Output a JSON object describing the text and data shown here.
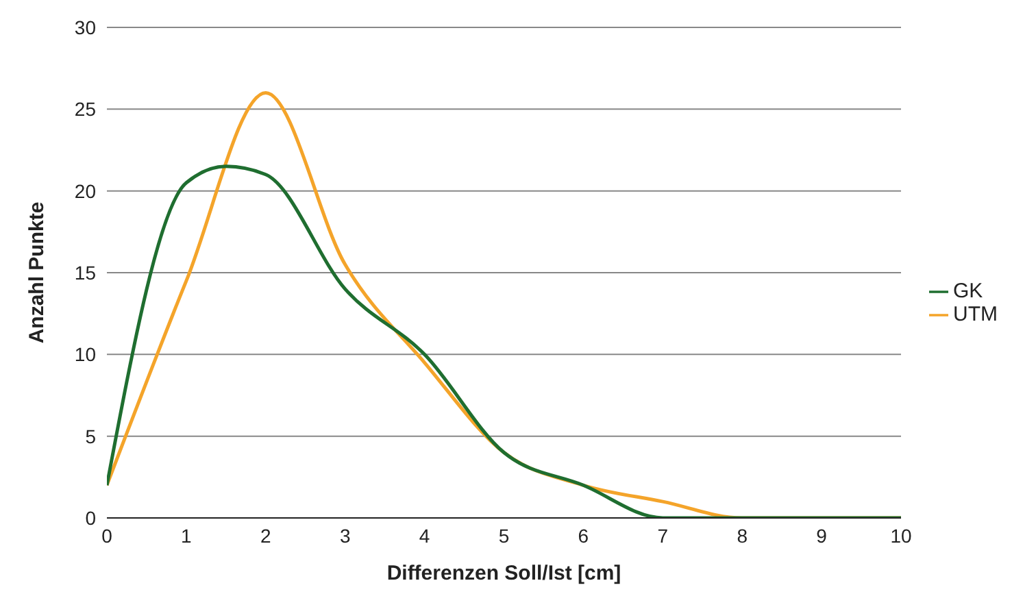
{
  "chart_data": {
    "type": "line",
    "xlabel": "Differenzen Soll/Ist [cm]",
    "ylabel": "Anzahl Punkte",
    "series": [
      {
        "name": "UTM",
        "color": "#f4a42a",
        "x": [
          0,
          1,
          2,
          3,
          4,
          5,
          6,
          7,
          8,
          9,
          10
        ],
        "values": [
          2,
          14.5,
          26,
          15.5,
          9.5,
          4,
          2,
          1,
          0,
          0,
          0
        ]
      },
      {
        "name": "GK",
        "color": "#1f6e30",
        "x": [
          0,
          1,
          1.5,
          2,
          3,
          4,
          5,
          6,
          7,
          8,
          9,
          10
        ],
        "values": [
          2,
          20.5,
          21.5,
          21,
          14,
          10,
          4,
          2,
          0,
          0,
          0,
          0
        ]
      }
    ],
    "xlim": [
      0,
      10
    ],
    "xticks": [
      0,
      1,
      2,
      3,
      4,
      5,
      6,
      7,
      8,
      9,
      10
    ],
    "ylim": [
      0,
      30
    ],
    "yticks": [
      0,
      5,
      10,
      15,
      20,
      25,
      30
    ],
    "grid": "y",
    "legend": "right",
    "marker": "none",
    "line_style": "solid"
  }
}
